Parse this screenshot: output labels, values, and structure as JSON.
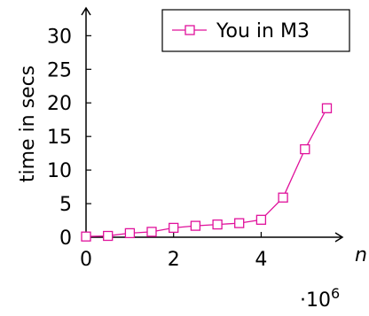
{
  "chart_data": {
    "type": "line",
    "x": [
      0,
      0.5,
      1,
      1.5,
      2,
      2.5,
      3,
      3.5,
      4,
      4.5,
      5,
      5.5
    ],
    "series": [
      {
        "name": "You in M3",
        "color": "#e0119b",
        "marker": "square",
        "values": [
          0.1,
          0.2,
          0.6,
          0.8,
          1.4,
          1.7,
          1.9,
          2.1,
          2.6,
          5.9,
          13.1,
          19.2
        ]
      }
    ],
    "xlabel": "n",
    "ylabel": "time in secs",
    "x_multiplier": "·10",
    "x_multiplier_exponent": "6",
    "xticks": [
      "0",
      "2",
      "4"
    ],
    "yticks": [
      "0",
      "5",
      "10",
      "15",
      "20",
      "25",
      "30"
    ],
    "xlim": [
      0,
      6.2
    ],
    "ylim": [
      0,
      34
    ],
    "grid": false,
    "legend_position": "top-right"
  }
}
